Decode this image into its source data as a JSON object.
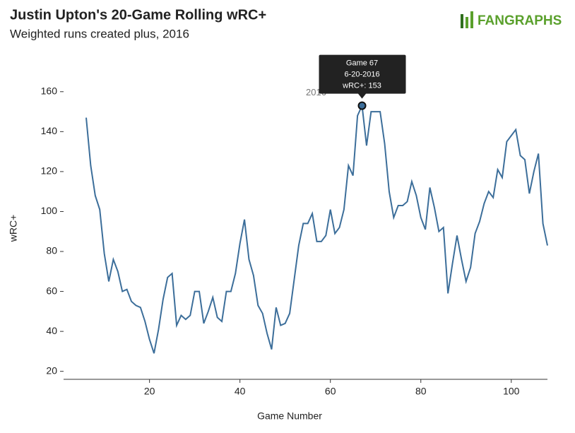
{
  "chart_data": {
    "type": "line",
    "title": "Justin Upton's 20-Game Rolling wRC+",
    "subtitle": "Weighted runs created plus, 2016",
    "logo": "FANGRAPHS",
    "x_label": "Game Number",
    "y_label": "wRC+",
    "x": [
      6,
      7,
      8,
      9,
      10,
      11,
      12,
      13,
      14,
      15,
      16,
      17,
      18,
      19,
      20,
      21,
      22,
      23,
      24,
      25,
      26,
      27,
      28,
      29,
      30,
      31,
      32,
      33,
      34,
      35,
      36,
      37,
      38,
      39,
      40,
      41,
      42,
      43,
      44,
      45,
      46,
      47,
      48,
      49,
      50,
      51,
      52,
      53,
      54,
      55,
      56,
      57,
      58,
      59,
      60,
      61,
      62,
      63,
      64,
      65,
      66,
      67,
      68,
      69,
      70,
      71,
      72,
      73,
      74,
      75,
      76,
      77,
      78,
      79,
      80,
      81,
      82,
      83,
      84,
      85,
      86,
      87,
      88,
      89,
      90,
      91,
      92,
      93,
      94,
      95,
      96,
      97,
      98,
      99,
      100,
      101,
      102,
      103,
      104,
      105,
      106,
      107,
      108
    ],
    "series": [
      {
        "name": "2016",
        "color": "#3c6e9a",
        "values": [
          147,
          123,
          108,
          101,
          79,
          65,
          76,
          70,
          60,
          61,
          55,
          53,
          52,
          45,
          36,
          29,
          41,
          56,
          67,
          69,
          43,
          48,
          46,
          48,
          60,
          60,
          44,
          50,
          57,
          47,
          45,
          60,
          60,
          69,
          84,
          96,
          76,
          68,
          53,
          49,
          39,
          31,
          52,
          43,
          44,
          49,
          66,
          83,
          94,
          94,
          99,
          85,
          85,
          88,
          101,
          89,
          92,
          101,
          123,
          118,
          148,
          153,
          133,
          150,
          150,
          150,
          134,
          110,
          97,
          103,
          103,
          105,
          115,
          108,
          97,
          91,
          112,
          102,
          90,
          92,
          59,
          74,
          88,
          76,
          65,
          72,
          89,
          95,
          104,
          110,
          107,
          121,
          117,
          135,
          138,
          141,
          128,
          126,
          109,
          120,
          129,
          94,
          83
        ]
      }
    ],
    "tooltip": {
      "index": 61,
      "lines": [
        "Game 67",
        "6-20-2016",
        "wRC+: 153"
      ]
    },
    "xlim": [
      1,
      108
    ],
    "xticks": [
      20,
      40,
      60,
      80,
      100
    ],
    "ylim": [
      16,
      167
    ],
    "yticks": [
      20,
      40,
      60,
      80,
      100,
      120,
      140,
      160
    ],
    "grid": false
  }
}
